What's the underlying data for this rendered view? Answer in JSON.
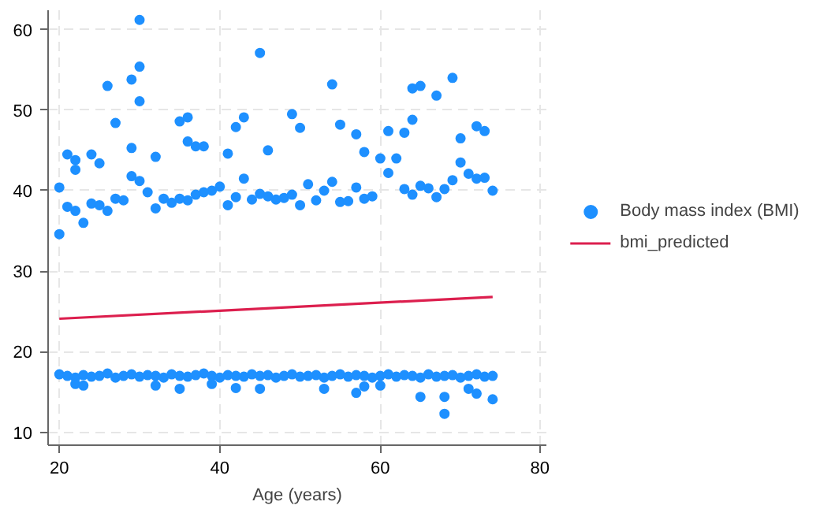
{
  "chart_data": {
    "type": "scatter",
    "xlabel": "Age (years)",
    "xlim": [
      18.6,
      80.7
    ],
    "ylim": [
      8.4,
      62.4
    ],
    "xticks": [
      20,
      40,
      60,
      80
    ],
    "yticks": [
      10,
      20,
      30,
      40,
      50,
      60
    ],
    "grid": true,
    "legend": "right",
    "series": [
      {
        "name": "Body mass index (BMI)",
        "marker": "circle",
        "color": "#1e90ff",
        "x": [
          20,
          21,
          22,
          23,
          24,
          25,
          26,
          27,
          28,
          29,
          30,
          31,
          32,
          33,
          34,
          35,
          36,
          37,
          38,
          39,
          40,
          41,
          42,
          43,
          44,
          45,
          46,
          47,
          48,
          49,
          50,
          51,
          52,
          53,
          54,
          55,
          56,
          57,
          58,
          59,
          60,
          61,
          62,
          63,
          64,
          65,
          66,
          67,
          68,
          69,
          70,
          71,
          72,
          73,
          74,
          20,
          21,
          22,
          23,
          24,
          25,
          26,
          27,
          28,
          29,
          30,
          31,
          32,
          33,
          34,
          35,
          36,
          37,
          38,
          39,
          40,
          41,
          42,
          43,
          44,
          45,
          46,
          47,
          48,
          49,
          50,
          51,
          52,
          53,
          54,
          55,
          56,
          57,
          58,
          59,
          60,
          61,
          62,
          63,
          64,
          65,
          66,
          67,
          68,
          69,
          70,
          71,
          72,
          73,
          74,
          20,
          21,
          22,
          22,
          24,
          25,
          26,
          27,
          29,
          29,
          30,
          30,
          30,
          32,
          35,
          36,
          36,
          37,
          38,
          41,
          42,
          43,
          45,
          46,
          49,
          50,
          54,
          55,
          57,
          58,
          61,
          63,
          64,
          65,
          64,
          67,
          69,
          70,
          72,
          73,
          22,
          23,
          32,
          35,
          39,
          42,
          45,
          53,
          57,
          58,
          60,
          65,
          68,
          68,
          71,
          72,
          74
        ],
        "values": [
          17.2,
          17.0,
          16.8,
          17.1,
          16.9,
          17.0,
          17.3,
          16.8,
          17.0,
          17.2,
          16.9,
          17.1,
          17.0,
          16.8,
          17.2,
          17.0,
          16.9,
          17.1,
          17.3,
          17.0,
          16.8,
          17.1,
          17.0,
          16.9,
          17.2,
          17.0,
          17.1,
          16.8,
          17.0,
          17.2,
          16.9,
          17.0,
          17.1,
          16.8,
          17.0,
          17.2,
          16.9,
          17.1,
          17.0,
          16.8,
          17.0,
          17.2,
          16.9,
          17.1,
          17.0,
          16.8,
          17.2,
          16.9,
          17.0,
          17.1,
          16.8,
          17.0,
          17.2,
          16.9,
          17.0,
          34.6,
          38.0,
          37.5,
          36.0,
          38.4,
          38.2,
          37.5,
          39.0,
          38.8,
          41.8,
          41.2,
          39.8,
          37.8,
          39.0,
          38.5,
          39.0,
          38.8,
          39.5,
          39.8,
          40.0,
          40.5,
          38.2,
          39.2,
          41.5,
          38.9,
          39.6,
          39.3,
          38.9,
          39.1,
          39.5,
          38.2,
          40.8,
          38.8,
          40.0,
          41.1,
          38.6,
          38.7,
          40.4,
          39.0,
          39.3,
          44.0,
          42.2,
          44.0,
          40.2,
          39.5,
          40.6,
          40.3,
          39.2,
          40.2,
          41.3,
          43.5,
          42.1,
          41.5,
          41.6,
          40.0,
          40.4,
          44.5,
          43.8,
          42.6,
          44.5,
          43.4,
          53.0,
          48.4,
          53.8,
          45.3,
          61.2,
          55.4,
          51.1,
          44.2,
          48.6,
          49.1,
          46.1,
          45.5,
          45.5,
          44.6,
          47.9,
          49.1,
          57.1,
          45.0,
          49.5,
          47.8,
          53.2,
          48.2,
          47.0,
          44.8,
          47.4,
          47.2,
          52.7,
          53.0,
          48.8,
          51.8,
          54.0,
          46.5,
          48.0,
          47.4,
          16.0,
          15.8,
          15.8,
          15.4,
          16.0,
          15.5,
          15.4,
          15.4,
          14.9,
          15.7,
          15.8,
          14.4,
          14.4,
          12.3,
          15.4,
          14.8,
          14.1
        ]
      },
      {
        "name": "bmi_predicted",
        "type": "line",
        "line_style": "solid",
        "color": "#dc1f4e",
        "x": [
          20,
          74
        ],
        "values": [
          24.1,
          26.8
        ]
      }
    ]
  }
}
